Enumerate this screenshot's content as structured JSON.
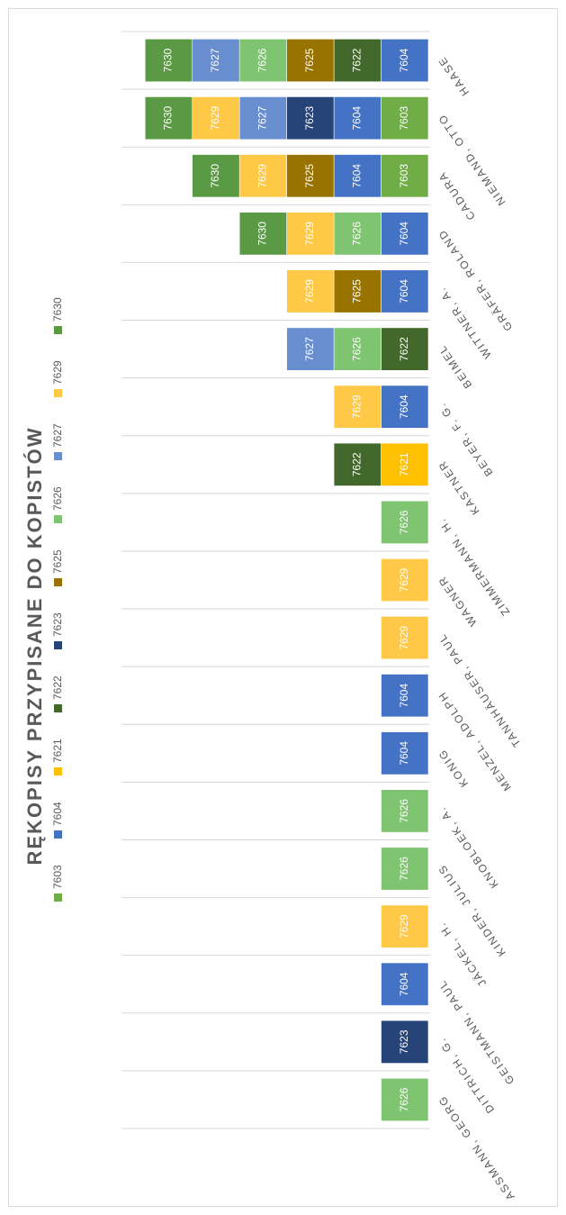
{
  "chart_data": {
    "type": "stacked_bar",
    "title": "RĘKOPISY PRZYPISANE DO KOPISTÓW",
    "categories": [
      "ASSMANN, GEORG",
      "DITTRICH, G.",
      "GEISTMANN, PAUL",
      "JÄCKEL, H.",
      "KINDER, JULIUS",
      "KNOBLOEK, A.",
      "KONIG",
      "MENZEL, ADOLPH",
      "TANNHÄUSER, PAUL",
      "WAGNER",
      "ZIMMERMANN, H.",
      "KASTNER",
      "BEYER, F. G.",
      "BEIMEL",
      "WITTNER, A.",
      "GRÄFER, ROLAND",
      "CADURA",
      "NIEMAND, OTTO",
      "HAASE"
    ],
    "series": [
      {
        "name": "7603",
        "color": "#70ad47",
        "values": [
          null,
          null,
          null,
          null,
          null,
          null,
          null,
          null,
          null,
          null,
          null,
          null,
          null,
          null,
          null,
          null,
          1,
          1,
          null
        ]
      },
      {
        "name": "7604",
        "color": "#4472c4",
        "values": [
          null,
          null,
          1,
          null,
          null,
          null,
          1,
          1,
          null,
          null,
          null,
          null,
          1,
          null,
          1,
          1,
          1,
          1,
          1
        ]
      },
      {
        "name": "7621",
        "color": "#ffc000",
        "values": [
          null,
          null,
          null,
          null,
          null,
          null,
          null,
          null,
          null,
          null,
          null,
          1,
          null,
          null,
          null,
          null,
          null,
          null,
          null
        ]
      },
      {
        "name": "7622",
        "color": "#43682b",
        "values": [
          null,
          null,
          null,
          null,
          null,
          null,
          null,
          null,
          null,
          null,
          null,
          1,
          null,
          1,
          null,
          null,
          null,
          null,
          1
        ]
      },
      {
        "name": "7623",
        "color": "#264478",
        "values": [
          null,
          1,
          null,
          null,
          null,
          null,
          null,
          null,
          null,
          null,
          null,
          null,
          null,
          null,
          null,
          null,
          null,
          1,
          null
        ]
      },
      {
        "name": "7625",
        "color": "#997300",
        "values": [
          null,
          null,
          null,
          null,
          null,
          null,
          null,
          null,
          null,
          null,
          null,
          null,
          null,
          null,
          1,
          null,
          1,
          null,
          1
        ]
      },
      {
        "name": "7626",
        "color": "#7fc471",
        "values": [
          1,
          null,
          null,
          null,
          1,
          1,
          null,
          null,
          null,
          null,
          1,
          null,
          null,
          1,
          null,
          1,
          null,
          null,
          1
        ]
      },
      {
        "name": "7627",
        "color": "#698ed0",
        "values": [
          null,
          null,
          null,
          null,
          null,
          null,
          null,
          null,
          null,
          null,
          null,
          null,
          null,
          1,
          null,
          null,
          null,
          1,
          1
        ]
      },
      {
        "name": "7629",
        "color": "#ffc846",
        "values": [
          null,
          null,
          null,
          1,
          null,
          null,
          null,
          null,
          1,
          1,
          null,
          null,
          1,
          null,
          1,
          1,
          1,
          1,
          null
        ]
      },
      {
        "name": "7630",
        "color": "#5a9a44",
        "values": [
          null,
          null,
          null,
          null,
          null,
          null,
          null,
          null,
          null,
          null,
          null,
          null,
          null,
          null,
          null,
          1,
          1,
          1,
          1
        ]
      }
    ],
    "ylim": [
      0,
      6.5
    ],
    "legend": "left"
  }
}
